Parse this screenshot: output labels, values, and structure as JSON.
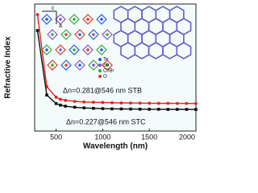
{
  "chart_data": {
    "type": "line",
    "x_label": "Wavelength (nm)",
    "y_label": "Refractive Index",
    "x": [
      300,
      400,
      500,
      546,
      600,
      700,
      800,
      900,
      1000,
      1100,
      1200,
      1300,
      1400,
      1500,
      1600,
      1700,
      1800,
      1900,
      2000
    ],
    "series": [
      {
        "name": "STB",
        "color": "#e8221b",
        "marker": "circle",
        "values": [
          1.1,
          0.42,
          0.32,
          0.3,
          0.29,
          0.28,
          0.275,
          0.272,
          0.27,
          0.268,
          0.266,
          0.265,
          0.264,
          0.263,
          0.262,
          0.262,
          0.261,
          0.261,
          0.26
        ]
      },
      {
        "name": "STC",
        "color": "#111111",
        "marker": "square",
        "values": [
          0.95,
          0.34,
          0.26,
          0.245,
          0.235,
          0.225,
          0.219,
          0.215,
          0.212,
          0.21,
          0.209,
          0.208,
          0.207,
          0.206,
          0.206,
          0.205,
          0.205,
          0.205,
          0.204
        ]
      }
    ],
    "annotations": [
      "Δn=0.281@546 nm STB",
      "Δn=0.227@546 nm STC"
    ],
    "xlim": [
      270,
      2000
    ],
    "ylim": [
      0,
      1.2
    ],
    "xticks": [
      500,
      1000,
      1500,
      2000
    ],
    "inset_legend": [
      "Te",
      "Sb",
      "Cl/Br",
      "O"
    ],
    "inset_axes": [
      "c",
      "a"
    ]
  }
}
